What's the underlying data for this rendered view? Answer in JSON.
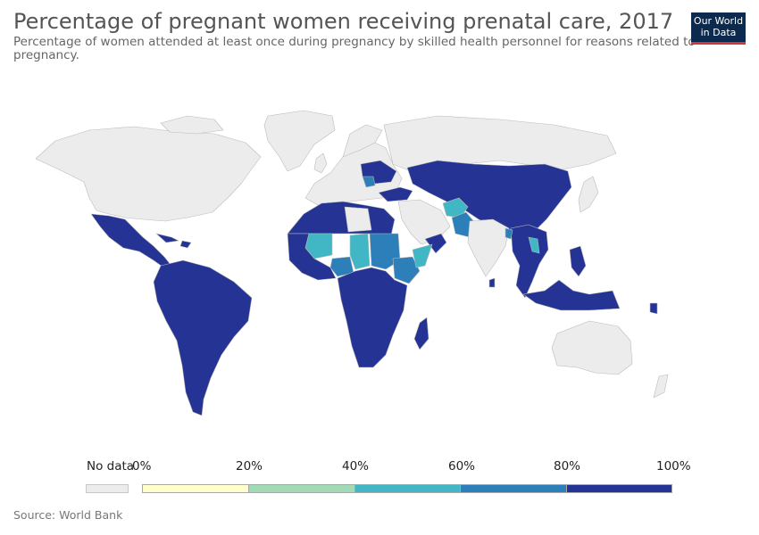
{
  "header": {
    "title": "Percentage of pregnant women receiving prenatal care, 2017",
    "subtitle": "Percentage of women attended at least once during pregnancy by skilled health personnel for reasons related to pregnancy.",
    "logo_line1": "Our World",
    "logo_line2": "in Data"
  },
  "legend": {
    "nodata_label": "No data",
    "bins": [
      {
        "label": "0%",
        "color": "#ffffcc"
      },
      {
        "label": "20%",
        "color": "#a1dab4"
      },
      {
        "label": "40%",
        "color": "#41b6c4"
      },
      {
        "label": "60%",
        "color": "#2c7fb8"
      },
      {
        "label": "80%",
        "color": "#253494"
      }
    ],
    "end_label": "100%"
  },
  "colors": {
    "nodata": "#ececec",
    "border": "#bbbbbb",
    "band_80_100": "#253494",
    "band_60_80": "#2c7fb8",
    "band_40_60": "#41b6c4"
  },
  "source": "Source: World Bank"
}
